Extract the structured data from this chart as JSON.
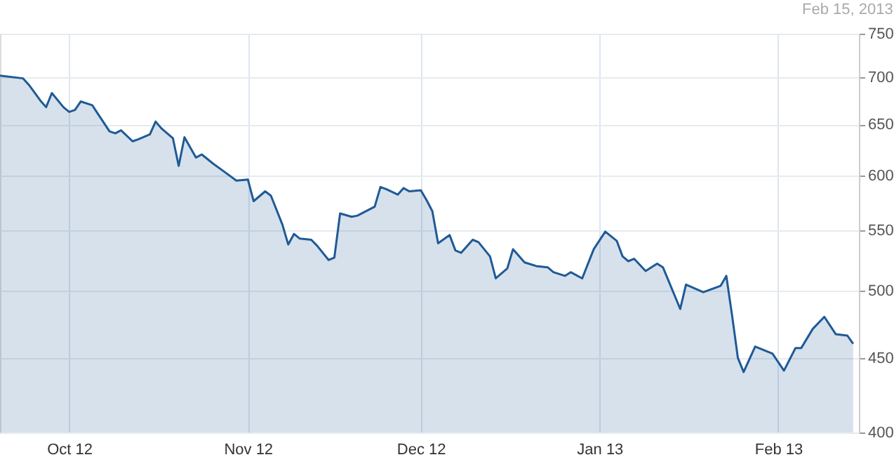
{
  "chart_data": {
    "type": "area",
    "annotations": [
      "Feb 15, 2013"
    ],
    "x": [
      "2012-09-19",
      "2012-09-23",
      "2012-09-24",
      "2012-09-26",
      "2012-09-27",
      "2012-09-28",
      "2012-09-30",
      "2012-10-01",
      "2012-10-02",
      "2012-10-03",
      "2012-10-05",
      "2012-10-08",
      "2012-10-09",
      "2012-10-10",
      "2012-10-12",
      "2012-10-13",
      "2012-10-15",
      "2012-10-16",
      "2012-10-17",
      "2012-10-19",
      "2012-10-20",
      "2012-10-21",
      "2012-10-23",
      "2012-10-24",
      "2012-10-26",
      "2012-10-28",
      "2012-10-30",
      "2012-11-01",
      "2012-11-02",
      "2012-11-04",
      "2012-11-05",
      "2012-11-07",
      "2012-11-08",
      "2012-11-09",
      "2012-11-10",
      "2012-11-12",
      "2012-11-13",
      "2012-11-15",
      "2012-11-16",
      "2012-11-17",
      "2012-11-19",
      "2012-11-20",
      "2012-11-23",
      "2012-11-24",
      "2012-11-25",
      "2012-11-27",
      "2012-11-28",
      "2012-11-29",
      "2012-12-01",
      "2012-12-02",
      "2012-12-03",
      "2012-12-04",
      "2012-12-06",
      "2012-12-07",
      "2012-12-08",
      "2012-12-10",
      "2012-12-11",
      "2012-12-13",
      "2012-12-14",
      "2012-12-16",
      "2012-12-17",
      "2012-12-19",
      "2012-12-21",
      "2012-12-23",
      "2012-12-24",
      "2012-12-26",
      "2012-12-27",
      "2012-12-29",
      "2012-12-31",
      "2013-01-02",
      "2013-01-04",
      "2013-01-05",
      "2013-01-06",
      "2013-01-07",
      "2013-01-09",
      "2013-01-11",
      "2013-01-12",
      "2013-01-15",
      "2013-01-16",
      "2013-01-19",
      "2013-01-22",
      "2013-01-23",
      "2013-01-24",
      "2013-01-25",
      "2013-01-26",
      "2013-01-28",
      "2013-01-31",
      "2013-02-02",
      "2013-02-04",
      "2013-02-05",
      "2013-02-07",
      "2013-02-09",
      "2013-02-11",
      "2013-02-13",
      "2013-02-14"
    ],
    "series": [
      {
        "color": "#1f5a96",
        "values": [
          702,
          699,
          692,
          675,
          668,
          683,
          668,
          663,
          665,
          674,
          670,
          643,
          641,
          644,
          633,
          635,
          640,
          653,
          646,
          636,
          609,
          637,
          617,
          620,
          611,
          603,
          595,
          596,
          576,
          585,
          581,
          555,
          538,
          547,
          543,
          542,
          537,
          525,
          527,
          565,
          562,
          563,
          571,
          589,
          587,
          582,
          588,
          585,
          586,
          577,
          567,
          539,
          546,
          533,
          531,
          542,
          540,
          528,
          510,
          518,
          534,
          523,
          520,
          519,
          515,
          512,
          515,
          510,
          534,
          549,
          541,
          528,
          524,
          526,
          516,
          522,
          519,
          486,
          505,
          499,
          504,
          512,
          481,
          450,
          440,
          458,
          453,
          441,
          457,
          457,
          471,
          480,
          467,
          466,
          460
        ]
      }
    ],
    "xlim": [
      "2012-09-19",
      "2013-02-15"
    ],
    "xticks": [
      {
        "value": "2012-10-01",
        "label": "Oct 12"
      },
      {
        "value": "2012-11-01",
        "label": "Nov 12"
      },
      {
        "value": "2012-12-01",
        "label": "Dec 12"
      },
      {
        "value": "2013-01-01",
        "label": "Jan 13"
      },
      {
        "value": "2013-02-01",
        "label": "Feb 13"
      }
    ],
    "ylim": [
      400,
      750
    ],
    "yticks": [
      400,
      450,
      500,
      550,
      600,
      650,
      700,
      750
    ],
    "log": true,
    "grid": true
  }
}
